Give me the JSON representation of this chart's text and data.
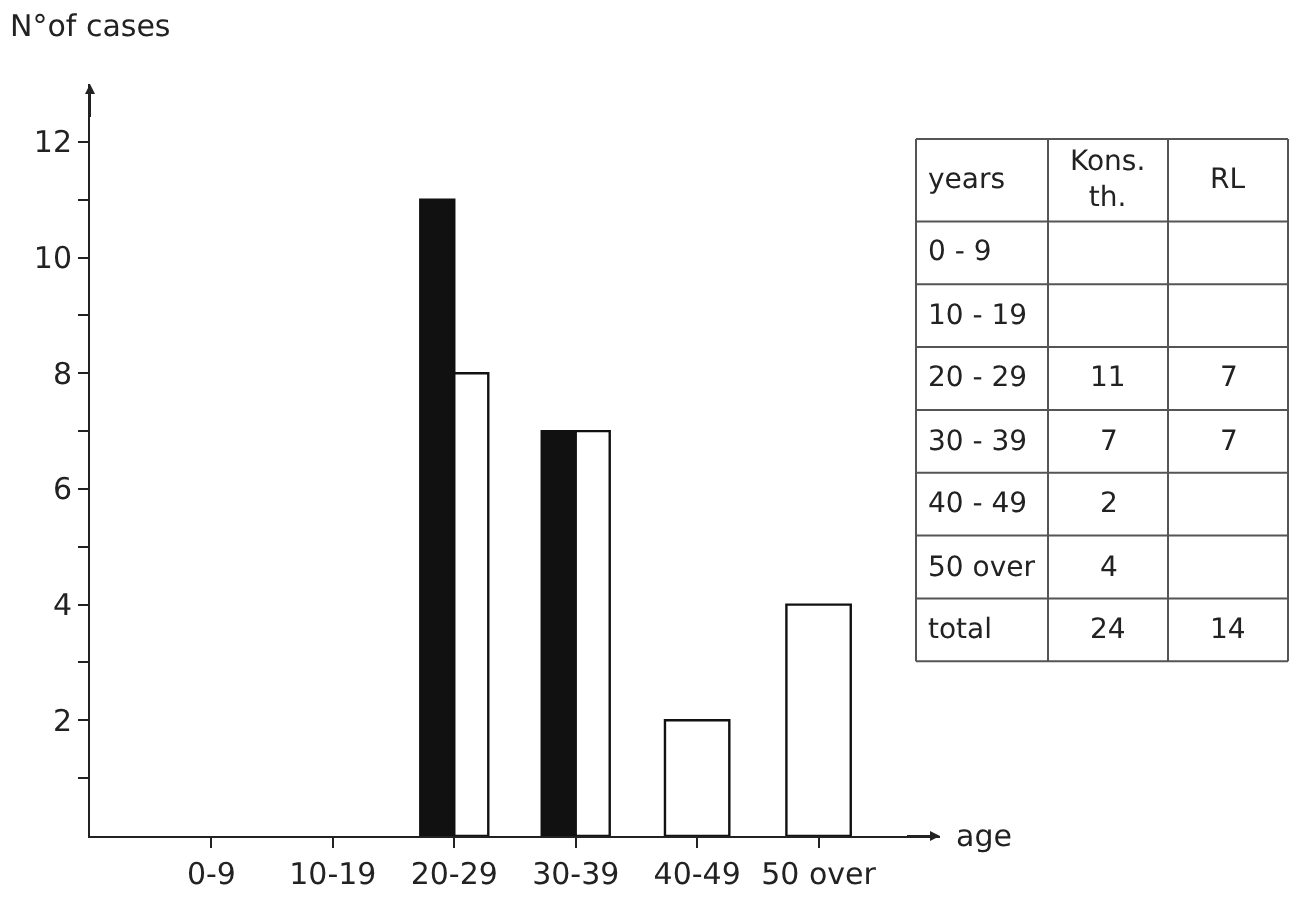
{
  "chart_data": {
    "type": "bar",
    "ylabel": "N°of cases",
    "xlabel": "age",
    "categories": [
      "0-9",
      "10-19",
      "20-29",
      "30-39",
      "40-49",
      "50 over"
    ],
    "series": [
      {
        "color": "#111111",
        "values": [
          null,
          null,
          11,
          7,
          null,
          null
        ]
      },
      {
        "color": "#ffffff",
        "values": [
          null,
          null,
          8,
          7,
          2,
          4
        ]
      }
    ],
    "ylim": [
      0,
      13
    ],
    "yticks": [
      {
        "value": 1,
        "label": null
      },
      2,
      {
        "value": 3,
        "label": null
      },
      4,
      {
        "value": 5,
        "label": null
      },
      6,
      {
        "value": 7,
        "label": null
      },
      8,
      {
        "value": 9,
        "label": null
      },
      10,
      {
        "value": 11,
        "label": null
      },
      12
    ],
    "annotations": [
      "years\tKons.\nth.\tRL",
      "0 - 9\t\t",
      "10 - 19\t\t",
      "20 - 29\t11\t7",
      "30 - 39\t7\t7",
      "40 - 49\t2\t",
      "50 over\t4\t",
      "total\t24\t14"
    ]
  }
}
